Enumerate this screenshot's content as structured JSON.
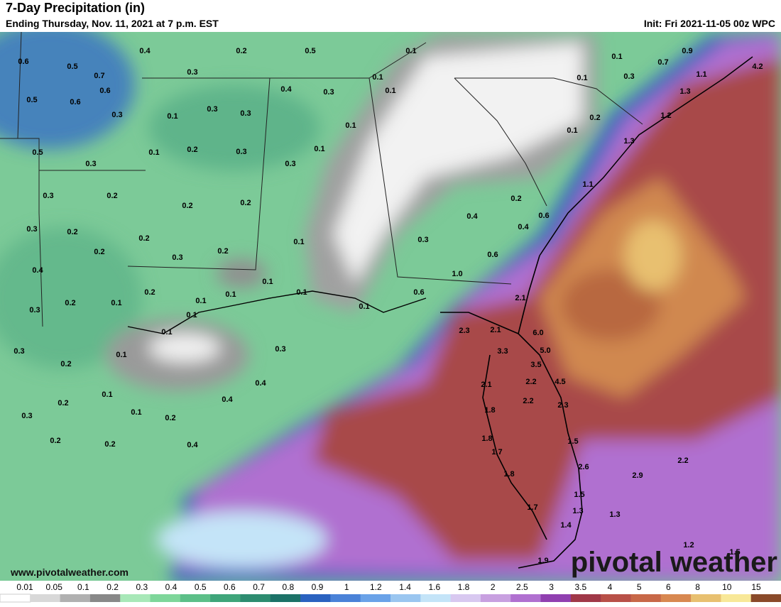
{
  "header": {
    "title": "7-Day Precipitation (in)",
    "subtitle": "Ending Thursday, Nov. 11, 2021 at 7 p.m. EST",
    "init": "Init: Fri 2021-11-05 00z WPC"
  },
  "footer": {
    "website": "www.pivotalweather.com",
    "logo": "pivotal weather"
  },
  "map": {
    "labels": [
      "0.6",
      "0.5",
      "0.7",
      "0.6",
      "0.5",
      "0.6",
      "0.4",
      "0.3",
      "0.2",
      "0.5",
      "0.1",
      "0.1",
      "0.9",
      "0.7",
      "0.3",
      "0.1",
      "1.1",
      "4.2",
      "1.3",
      "1.2",
      "0.2",
      "0.1",
      "1.3",
      "0.1",
      "0.4",
      "0.3",
      "0.1",
      "0.3",
      "0.3",
      "0.1",
      "0.3",
      "0.1",
      "0.1",
      "0.5",
      "0.1",
      "0.2",
      "0.3",
      "0.3",
      "0.3",
      "0.3",
      "0.2",
      "0.2",
      "0.2",
      "1.1",
      "0.2",
      "0.4",
      "0.3",
      "0.2",
      "0.2",
      "0.1",
      "0.3",
      "0.4",
      "0.6",
      "0.2",
      "0.3",
      "0.2",
      "0.6",
      "0.4",
      "1.0",
      "0.1",
      "0.1",
      "0.2",
      "0.1",
      "0.1",
      "0.3",
      "0.2",
      "0.1",
      "0.1",
      "0.6",
      "0.1",
      "2.1",
      "2.3",
      "2.1",
      "6.0",
      "0.1",
      "0.3",
      "0.1",
      "0.3",
      "5.0",
      "3.3",
      "0.2",
      "3.5",
      "0.4",
      "2.1",
      "2.2",
      "4.5",
      "0.1",
      "0.4",
      "0.2",
      "2.2",
      "2.3",
      "1.8",
      "0.3",
      "0.1",
      "0.2",
      "0.2",
      "0.2",
      "0.4",
      "1.8",
      "1.5",
      "1.7",
      "2.2",
      "2.6",
      "2.9",
      "1.8",
      "1.5",
      "1.7",
      "1.3",
      "1.3",
      "1.4",
      "1.2",
      "1.5",
      "1.9"
    ]
  },
  "legend": {
    "ticks": [
      "0.01",
      "0.05",
      "0.1",
      "0.2",
      "0.3",
      "0.4",
      "0.5",
      "0.6",
      "0.7",
      "0.8",
      "0.9",
      "1",
      "1.2",
      "1.4",
      "1.6",
      "1.8",
      "2",
      "2.5",
      "3",
      "3.5",
      "4",
      "5",
      "6",
      "8",
      "10",
      "15"
    ],
    "colors": [
      "#ffffff",
      "#d8d8d8",
      "#b0b0b0",
      "#888888",
      "#a8e8b8",
      "#7ed69a",
      "#5cbf88",
      "#3fa57a",
      "#2d8c70",
      "#1c7268",
      "#2a62c0",
      "#4a82d8",
      "#6aa2e8",
      "#9ac6f0",
      "#c4e4f8",
      "#d8c8f0",
      "#c8a0e0",
      "#b070d0",
      "#9040b0",
      "#a03848",
      "#b85048",
      "#c86848",
      "#d88850",
      "#e8c070",
      "#f8e898",
      "#8a4a2a"
    ]
  }
}
